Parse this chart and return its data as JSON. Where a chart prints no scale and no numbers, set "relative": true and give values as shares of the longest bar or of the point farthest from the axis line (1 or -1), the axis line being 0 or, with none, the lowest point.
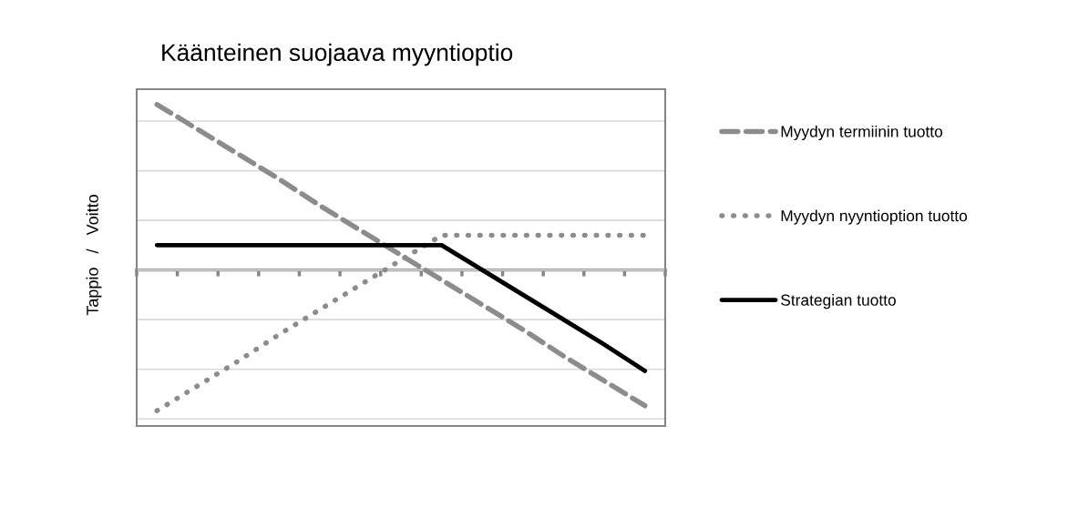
{
  "chart_data": {
    "type": "line",
    "title": "Käänteinen suojaava myyntioptio",
    "ylabel": "Tappio   /   Voitto",
    "relative": true,
    "categories": [
      null,
      null,
      null,
      null,
      null,
      null,
      null,
      null,
      null,
      null,
      null,
      null,
      null
    ],
    "series": [
      {
        "name": "Myydyn termiinin tuotto",
        "color": "#8c8c8c",
        "line_style": "dashed",
        "values": [
          1.0,
          0.85,
          0.7,
          0.55,
          0.39,
          0.24,
          0.09,
          -0.06,
          -0.21,
          -0.36,
          -0.52,
          -0.67,
          -0.82
        ]
      },
      {
        "name": "Myydyn nyyntioption tuotto",
        "color": "#8c8c8c",
        "line_style": "dotted",
        "values": [
          -0.85,
          -0.7,
          -0.55,
          -0.39,
          -0.24,
          -0.09,
          0.06,
          0.21,
          0.21,
          0.21,
          0.21,
          0.21,
          0.21
        ]
      },
      {
        "name": "Strategian tuotto",
        "color": "#000000",
        "line_style": "solid",
        "values": [
          0.15,
          0.15,
          0.15,
          0.15,
          0.15,
          0.15,
          0.15,
          0.15,
          0.0,
          -0.15,
          -0.3,
          -0.45,
          -0.61
        ]
      }
    ],
    "grid": "y",
    "legend": "right",
    "tick_labels": false
  }
}
